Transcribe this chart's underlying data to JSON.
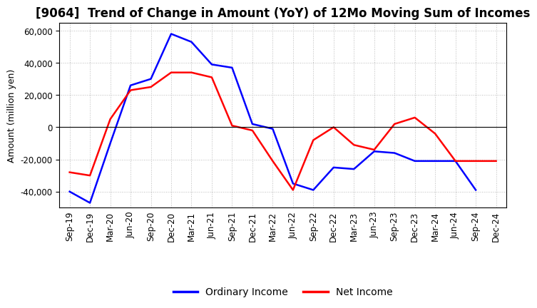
{
  "title": "[9064]  Trend of Change in Amount (YoY) of 12Mo Moving Sum of Incomes",
  "ylabel": "Amount (million yen)",
  "x_labels": [
    "Sep-19",
    "Dec-19",
    "Mar-20",
    "Jun-20",
    "Sep-20",
    "Dec-20",
    "Mar-21",
    "Jun-21",
    "Sep-21",
    "Dec-21",
    "Mar-22",
    "Jun-22",
    "Sep-22",
    "Dec-22",
    "Mar-23",
    "Jun-23",
    "Sep-23",
    "Dec-23",
    "Mar-24",
    "Jun-24",
    "Sep-24",
    "Dec-24"
  ],
  "ordinary_income": [
    -40000,
    -47000,
    -10000,
    26000,
    30000,
    58000,
    53000,
    39000,
    37000,
    2000,
    -1000,
    -35000,
    -39000,
    -25000,
    -26000,
    -15000,
    -16000,
    -21000,
    -21000,
    -21000,
    -39000,
    null
  ],
  "net_income": [
    -28000,
    -30000,
    5000,
    23000,
    25000,
    34000,
    34000,
    31000,
    1000,
    -2000,
    -21000,
    -39000,
    -8000,
    0,
    -11000,
    -14000,
    2000,
    6000,
    -4000,
    -21000,
    -21000,
    -21000
  ],
  "ordinary_income_color": "#0000FF",
  "net_income_color": "#FF0000",
  "ylim": [
    -50000,
    65000
  ],
  "yticks": [
    -40000,
    -20000,
    0,
    20000,
    40000,
    60000
  ],
  "background_color": "#FFFFFF",
  "grid_color": "#BBBBBB",
  "legend_labels": [
    "Ordinary Income",
    "Net Income"
  ],
  "line_width": 1.8,
  "title_fontsize": 12,
  "axis_label_fontsize": 9,
  "tick_fontsize": 8.5,
  "legend_fontsize": 10
}
